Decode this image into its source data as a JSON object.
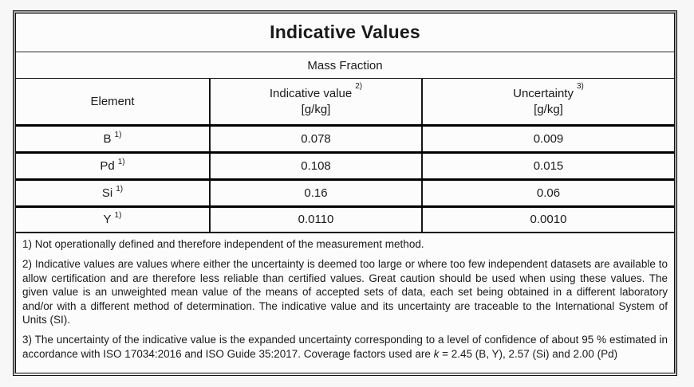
{
  "document": {
    "title": "Indicative Values",
    "subtitle": "Mass Fraction",
    "columns": {
      "element": {
        "label": "Element"
      },
      "indicative_value": {
        "label": "Indicative value",
        "footnote_ref": "2)",
        "unit": "[g/kg]"
      },
      "uncertainty": {
        "label": "Uncertainty",
        "footnote_ref": "3)",
        "unit": "[g/kg]"
      }
    },
    "rows": [
      {
        "element": "B",
        "footnote_ref": "1)",
        "indicative_value": "0.078",
        "uncertainty": "0.009"
      },
      {
        "element": "Pd",
        "footnote_ref": "1)",
        "indicative_value": "0.108",
        "uncertainty": "0.015"
      },
      {
        "element": "Si",
        "footnote_ref": "1)",
        "indicative_value": "0.16",
        "uncertainty": "0.06"
      },
      {
        "element": "Y",
        "footnote_ref": "1)",
        "indicative_value": "0.0110",
        "uncertainty": "0.0010"
      }
    ],
    "footnotes": {
      "fn1": "1) Not operationally defined and therefore independent of the measurement method.",
      "fn2": "2) Indicative values are values where either the uncertainty is deemed too large or where too few independent datasets are available to allow certification and are therefore less reliable than certified values. Great caution should be used when using these values. The given value is an unweighted mean value of the means of accepted sets of data, each set being obtained in a different laboratory and/or with a different method of determination. The indicative value and its uncertainty are traceable to the International System of Units (SI).",
      "fn3_before_k": "3) The uncertainty of the indicative value is the expanded uncertainty corresponding to a level of confidence of about 95 % estimated in accordance with ISO 17034:2016 and ISO Guide 35:2017. Coverage factors used are ",
      "fn3_k": "k",
      "fn3_after_k": " = 2.45 (B, Y), 2.57 (Si) and 2.00 (Pd)"
    }
  },
  "colors": {
    "page_background": "#f7f7f7",
    "table_background": "#fcfcfc",
    "border_black": "#111111",
    "separator_gray": "#9a9a9a",
    "frame_gray": "#a3a3a3",
    "text": "#1a1a1a"
  }
}
